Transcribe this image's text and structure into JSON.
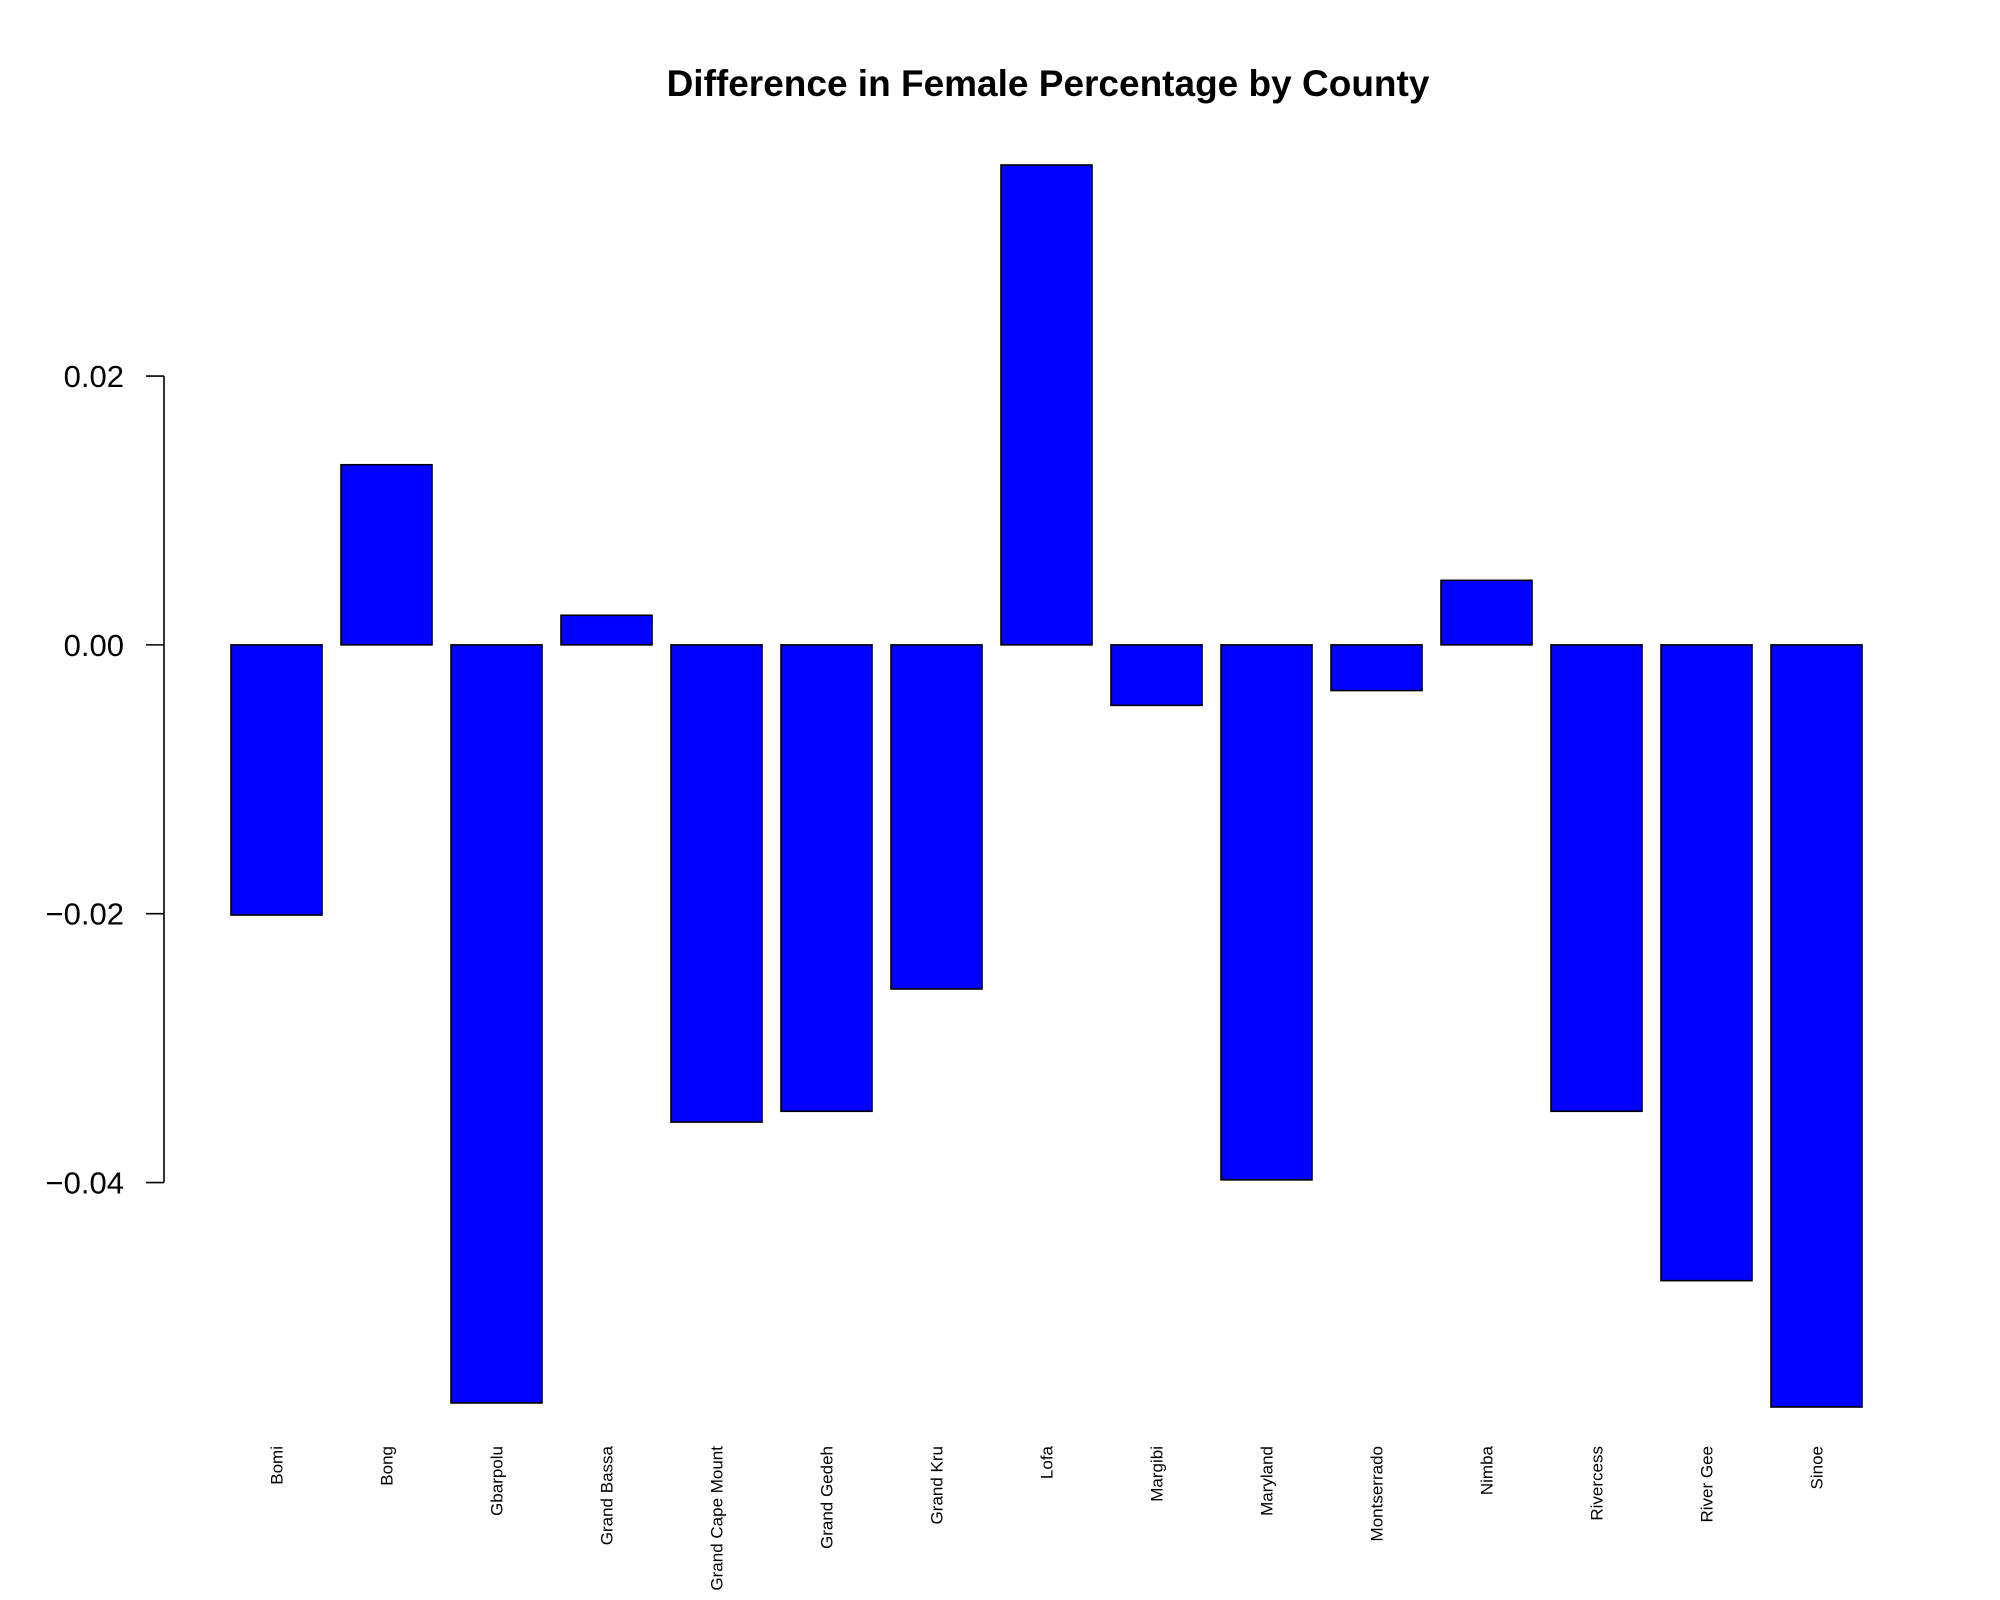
{
  "chart_data": {
    "type": "bar",
    "title": "Difference in Female Percentage by County",
    "xlabel": "",
    "ylabel": "",
    "categories": [
      "Bomi",
      "Bong",
      "Gbarpolu",
      "Grand Bassa",
      "Grand Cape Mount",
      "Grand Gedeh",
      "Grand Kru",
      "Lofa",
      "Margibi",
      "Maryland",
      "Montserrado",
      "Nimba",
      "Rivercess",
      "River Gee",
      "Sinoe"
    ],
    "values": [
      -0.0201,
      0.0134,
      -0.0564,
      0.0022,
      -0.0355,
      -0.0347,
      -0.0256,
      0.0357,
      -0.0045,
      -0.0398,
      -0.0034,
      0.0048,
      -0.0347,
      -0.0473,
      -0.0567
    ],
    "yticks": [
      -0.04,
      -0.02,
      0.0,
      0.02
    ],
    "ytick_labels": [
      "−0.04",
      "−0.02",
      "0.00",
      "0.02"
    ],
    "ylim": [
      -0.0567,
      0.0357
    ],
    "grid": false,
    "bar_color": "#0000ff",
    "edge_color": "#000000"
  }
}
